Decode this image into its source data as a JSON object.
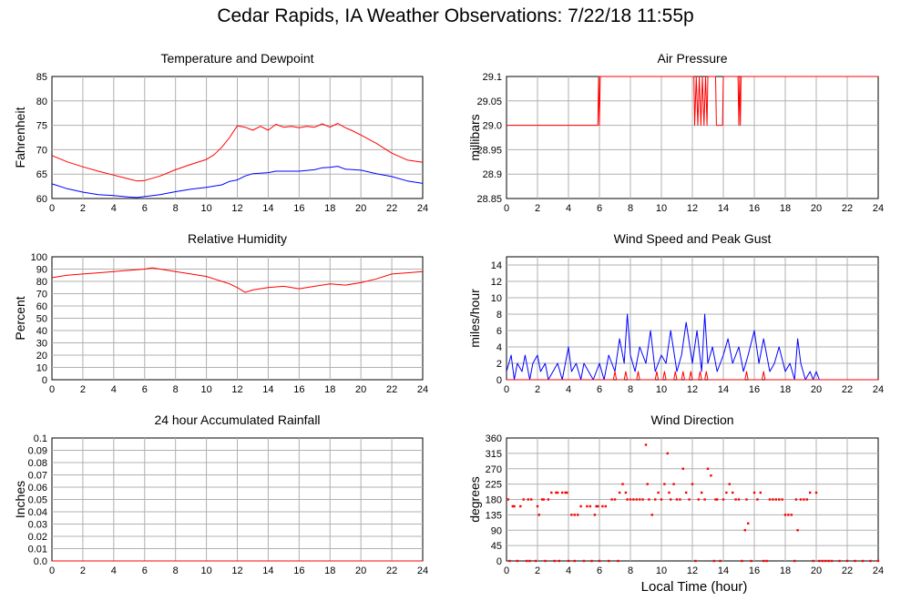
{
  "title": "Cedar Rapids, IA Weather Observations: 7/22/18 11:55p",
  "xlabel": "Local Time (hour)",
  "x_ticks": [
    "0",
    "2",
    "4",
    "6",
    "8",
    "10",
    "12",
    "14",
    "16",
    "18",
    "20",
    "22",
    "24"
  ],
  "colors": {
    "red": "#ff0000",
    "blue": "#0000ff",
    "grid": "#b0b0b0"
  },
  "chart_data": [
    {
      "id": "temp",
      "type": "line",
      "title": "Temperature and Dewpoint",
      "ylabel": "Fahrenheit",
      "xlim": [
        0,
        24
      ],
      "ylim": [
        60,
        85
      ],
      "y_ticks": [
        "60",
        "65",
        "70",
        "75",
        "80",
        "85"
      ],
      "grid": true,
      "series": [
        {
          "color": "#ff0000",
          "x": [
            0,
            1,
            2,
            3,
            4,
            5,
            5.5,
            6,
            7,
            8,
            9,
            10,
            10.5,
            11,
            11.5,
            12,
            12.5,
            13,
            13.5,
            14,
            14.5,
            15,
            15.5,
            16,
            16.5,
            17,
            17.5,
            18,
            18.5,
            19,
            19.5,
            20,
            21,
            22,
            23,
            24
          ],
          "y": [
            68.8,
            67.5,
            66.5,
            65.6,
            64.8,
            64.0,
            63.6,
            63.7,
            64.6,
            65.9,
            67.0,
            68.0,
            69.0,
            70.5,
            72.5,
            74.9,
            74.6,
            74.0,
            74.8,
            74.0,
            75.2,
            74.6,
            74.8,
            74.5,
            74.8,
            74.6,
            75.3,
            74.6,
            75.4,
            74.5,
            73.8,
            73.0,
            71.3,
            69.3,
            67.9,
            67.4
          ]
        },
        {
          "color": "#0000ff",
          "x": [
            0,
            1,
            2,
            3,
            4,
            5,
            5.5,
            6,
            7,
            8,
            9,
            10,
            11,
            11.5,
            12,
            12.5,
            13,
            14,
            14.5,
            15,
            16,
            17,
            17.5,
            18,
            18.5,
            19,
            20,
            21,
            22,
            23,
            24
          ],
          "y": [
            63.0,
            62.0,
            61.3,
            60.8,
            60.6,
            60.3,
            60.2,
            60.4,
            60.8,
            61.4,
            61.9,
            62.3,
            62.8,
            63.5,
            63.8,
            64.6,
            65.1,
            65.3,
            65.6,
            65.6,
            65.6,
            65.9,
            66.3,
            66.4,
            66.6,
            66.0,
            65.8,
            65.1,
            64.5,
            63.6,
            63.1
          ]
        }
      ]
    },
    {
      "id": "pressure",
      "type": "line",
      "title": "Air Pressure",
      "ylabel": "millibars",
      "xlim": [
        0,
        24
      ],
      "ylim": [
        28.85,
        29.1
      ],
      "y_ticks": [
        "28.85",
        "28.9",
        "28.95",
        "29.0",
        "29.05",
        "29.1"
      ],
      "grid": true,
      "series": [
        {
          "color": "#ff0000",
          "x": [
            0,
            5.9,
            5.95,
            6.0,
            6.05,
            6.1,
            12.1,
            12.15,
            12.25,
            12.35,
            12.45,
            12.55,
            12.65,
            12.75,
            12.85,
            12.95,
            13.0,
            13.5,
            13.55,
            13.95,
            14.0,
            14.95,
            15.0,
            15.05,
            15.1,
            15.15,
            24
          ],
          "y": [
            29.0,
            29.0,
            29.1,
            29.0,
            29.1,
            29.1,
            29.1,
            29.0,
            29.1,
            29.0,
            29.1,
            29.0,
            29.1,
            29.0,
            29.1,
            29.0,
            29.1,
            29.1,
            29.0,
            29.0,
            29.1,
            29.1,
            29.0,
            29.1,
            29.0,
            29.1,
            29.1
          ]
        }
      ]
    },
    {
      "id": "rh",
      "type": "line",
      "title": "Relative Humidity",
      "ylabel": "Percent",
      "xlim": [
        0,
        24
      ],
      "ylim": [
        0,
        100
      ],
      "y_ticks": [
        "0",
        "10",
        "20",
        "30",
        "40",
        "50",
        "60",
        "70",
        "80",
        "90",
        "100"
      ],
      "grid": true,
      "series": [
        {
          "color": "#ff0000",
          "x": [
            0,
            1,
            2,
            3,
            4,
            5,
            6,
            6.5,
            7,
            8,
            9,
            10,
            10.5,
            11,
            11.5,
            12,
            12.5,
            13,
            14,
            15,
            16,
            17,
            18,
            19,
            20,
            21,
            22,
            23,
            24
          ],
          "y": [
            83,
            85,
            86,
            87,
            88,
            89,
            90,
            91,
            90,
            88,
            86,
            84,
            82,
            80,
            78,
            75,
            71,
            73,
            75,
            76,
            74,
            76,
            78,
            77,
            79,
            82,
            86,
            87,
            88
          ]
        }
      ]
    },
    {
      "id": "wind",
      "type": "line",
      "title": "Wind Speed and Peak Gust",
      "ylabel": "miles/hour",
      "xlim": [
        0,
        24
      ],
      "ylim": [
        0,
        15
      ],
      "y_ticks": [
        "0",
        "2",
        "4",
        "6",
        "8",
        "10",
        "12",
        "14"
      ],
      "grid": true,
      "series": [
        {
          "color": "#0000ff",
          "x": [
            0,
            0.3,
            0.5,
            0.7,
            1.0,
            1.2,
            1.5,
            1.7,
            2.0,
            2.2,
            2.5,
            2.7,
            3.0,
            3.3,
            3.6,
            4.0,
            4.2,
            4.5,
            4.8,
            5.0,
            5.3,
            5.6,
            6.0,
            6.3,
            6.6,
            7.0,
            7.3,
            7.6,
            7.8,
            8.0,
            8.3,
            8.6,
            9.0,
            9.3,
            9.6,
            10.0,
            10.3,
            10.6,
            11.0,
            11.3,
            11.6,
            12.0,
            12.3,
            12.6,
            12.8,
            13.0,
            13.3,
            13.6,
            14.0,
            14.3,
            14.6,
            15.0,
            15.3,
            15.6,
            16.0,
            16.3,
            16.6,
            17.0,
            17.3,
            17.6,
            18.0,
            18.3,
            18.6,
            18.8,
            19.0,
            19.3,
            19.6,
            19.8,
            20.0,
            20.2,
            24
          ],
          "y": [
            1,
            3,
            0,
            2,
            1,
            3,
            0,
            2,
            3,
            1,
            2,
            0,
            1,
            2,
            0,
            4,
            1,
            2,
            0,
            2,
            1,
            0,
            2,
            0,
            3,
            1,
            5,
            2,
            8,
            3,
            1,
            4,
            2,
            6,
            1,
            3,
            2,
            6,
            1,
            3,
            7,
            2,
            6,
            1,
            8,
            2,
            4,
            1,
            3,
            5,
            2,
            4,
            1,
            3,
            6,
            2,
            5,
            1,
            2,
            4,
            1,
            2,
            0,
            5,
            2,
            0,
            1,
            0,
            1,
            0,
            0
          ]
        },
        {
          "color": "#ff0000",
          "x": [
            0,
            6.9,
            7.0,
            7.1,
            7.6,
            7.7,
            7.8,
            8.4,
            8.5,
            8.6,
            9.6,
            9.7,
            9.8,
            10.1,
            10.2,
            10.3,
            10.8,
            10.9,
            11.0,
            11.3,
            11.4,
            11.5,
            11.8,
            11.9,
            12.0,
            12.4,
            12.5,
            12.6,
            12.8,
            12.9,
            13.0,
            13.4,
            15.4,
            15.5,
            15.6,
            16.5,
            16.6,
            16.7,
            24
          ],
          "y": [
            0,
            0,
            1,
            0,
            0,
            1,
            0,
            0,
            1,
            0,
            0,
            1,
            0,
            0,
            1,
            0,
            0,
            1,
            0,
            0,
            1,
            0,
            0,
            1,
            0,
            0,
            1,
            0,
            0,
            1,
            0,
            0,
            0,
            1,
            0,
            0,
            1,
            0,
            0
          ]
        }
      ]
    },
    {
      "id": "rain",
      "type": "line",
      "title": "24 hour Accumulated Rainfall",
      "ylabel": "Inches",
      "xlim": [
        0,
        24
      ],
      "ylim": [
        0,
        0.1
      ],
      "y_ticks": [
        "0.0",
        "0.01",
        "0.02",
        "0.03",
        "0.04",
        "0.05",
        "0.06",
        "0.07",
        "0.08",
        "0.09",
        "0.1"
      ],
      "grid": true,
      "series": [
        {
          "color": "#ff0000",
          "x": [
            0,
            24
          ],
          "y": [
            0,
            0
          ]
        }
      ]
    },
    {
      "id": "winddir",
      "type": "scatter",
      "title": "Wind Direction",
      "ylabel": "degrees",
      "xlim": [
        0,
        24
      ],
      "ylim": [
        0,
        360
      ],
      "y_ticks": [
        "0",
        "45",
        "90",
        "135",
        "180",
        "225",
        "270",
        "315",
        "360"
      ],
      "grid": true,
      "series": [
        {
          "color": "#ff0000",
          "x": [
            0.1,
            0.2,
            0.4,
            0.5,
            0.7,
            0.9,
            1.1,
            1.3,
            1.4,
            1.5,
            1.6,
            1.9,
            2.0,
            2.1,
            2.3,
            2.4,
            2.5,
            2.7,
            2.9,
            3.1,
            3.2,
            3.3,
            3.4,
            3.6,
            3.8,
            3.9,
            4.0,
            4.2,
            4.4,
            4.4,
            4.6,
            4.8,
            5.0,
            5.2,
            5.4,
            5.5,
            5.7,
            5.8,
            5.9,
            6.0,
            6.2,
            6.4,
            6.6,
            6.8,
            7.0,
            7.2,
            7.3,
            7.5,
            7.7,
            7.8,
            8.0,
            8.2,
            8.4,
            8.6,
            8.8,
            9.0,
            9.1,
            9.2,
            9.4,
            9.6,
            9.8,
            10.0,
            10.2,
            10.4,
            10.5,
            10.6,
            10.8,
            11.0,
            11.2,
            11.4,
            11.6,
            11.8,
            12.0,
            12.2,
            12.4,
            12.6,
            12.8,
            13.0,
            13.2,
            13.4,
            13.5,
            13.6,
            13.8,
            14.0,
            14.2,
            14.4,
            14.6,
            14.8,
            15.0,
            15.2,
            15.4,
            15.5,
            15.6,
            15.8,
            16.0,
            16.2,
            16.4,
            16.6,
            16.8,
            17.0,
            17.2,
            17.4,
            17.6,
            17.8,
            18.0,
            18.2,
            18.4,
            18.6,
            18.7,
            18.8,
            19.0,
            19.2,
            19.4,
            19.6,
            19.8,
            20.0,
            20.2,
            20.4,
            20.6,
            20.8,
            21.0,
            21.5,
            22.0,
            22.5,
            23.0,
            23.5,
            24.0
          ],
          "y": [
            180,
            0,
            160,
            160,
            0,
            160,
            180,
            0,
            180,
            0,
            180,
            0,
            160,
            135,
            180,
            180,
            0,
            180,
            200,
            0,
            200,
            200,
            0,
            200,
            200,
            200,
            0,
            135,
            135,
            0,
            135,
            160,
            0,
            160,
            160,
            0,
            135,
            160,
            160,
            0,
            160,
            160,
            0,
            180,
            180,
            0,
            200,
            225,
            200,
            180,
            180,
            180,
            180,
            180,
            180,
            340,
            225,
            180,
            135,
            180,
            200,
            180,
            225,
            315,
            200,
            180,
            225,
            180,
            180,
            270,
            200,
            180,
            225,
            0,
            180,
            200,
            180,
            270,
            250,
            0,
            180,
            180,
            0,
            180,
            200,
            225,
            200,
            180,
            180,
            0,
            90,
            180,
            110,
            0,
            200,
            180,
            200,
            0,
            0,
            180,
            180,
            180,
            180,
            180,
            135,
            135,
            135,
            0,
            180,
            90,
            180,
            180,
            180,
            200,
            0,
            200,
            0,
            0,
            0,
            0,
            0,
            0,
            0,
            0,
            0,
            0,
            0
          ]
        }
      ]
    }
  ]
}
